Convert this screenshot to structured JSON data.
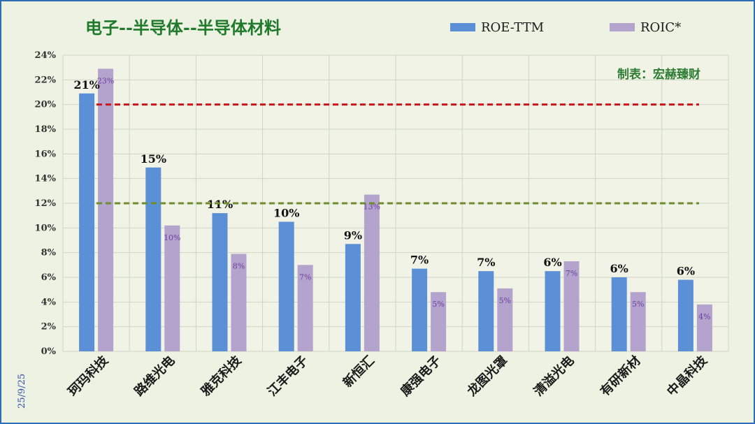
{
  "chart_data": {
    "type": "bar",
    "title": "电子--半导体--半导体材料",
    "credit": "制表：宏赫臻财",
    "date_stamp": "25/9/25",
    "categories": [
      "珂玛科技",
      "路维光电",
      "雅克科技",
      "江丰电子",
      "新恒汇",
      "康强电子",
      "龙图光罩",
      "清溢光电",
      "有研新材",
      "中晶科技"
    ],
    "series": [
      {
        "name": "ROE-TTM",
        "color": "#5b8fd6",
        "values": [
          20.9,
          14.9,
          11.2,
          10.5,
          8.7,
          6.7,
          6.5,
          6.5,
          6.0,
          5.8
        ],
        "labels": [
          "21%",
          "15%",
          "11%",
          "10%",
          "9%",
          "7%",
          "7%",
          "6%",
          "6%",
          "6%"
        ]
      },
      {
        "name": "ROIC*",
        "color": "#b4a3cc",
        "values": [
          22.9,
          10.2,
          7.9,
          7.0,
          12.7,
          4.8,
          5.1,
          7.3,
          4.8,
          3.8
        ],
        "labels": [
          "23%",
          "10%",
          "8%",
          "7%",
          "13%",
          "5%",
          "5%",
          "7%",
          "5%",
          "4%"
        ]
      }
    ],
    "reference_lines": [
      {
        "value": 20,
        "color": "#c8161d"
      },
      {
        "value": 12,
        "color": "#6f8f2f"
      }
    ],
    "ylim": [
      0,
      24
    ],
    "yticks": [
      "0%",
      "2%",
      "4%",
      "6%",
      "8%",
      "10%",
      "12%",
      "14%",
      "16%",
      "18%",
      "20%",
      "22%",
      "24%"
    ],
    "grid": true,
    "legend_position": "top-right"
  }
}
